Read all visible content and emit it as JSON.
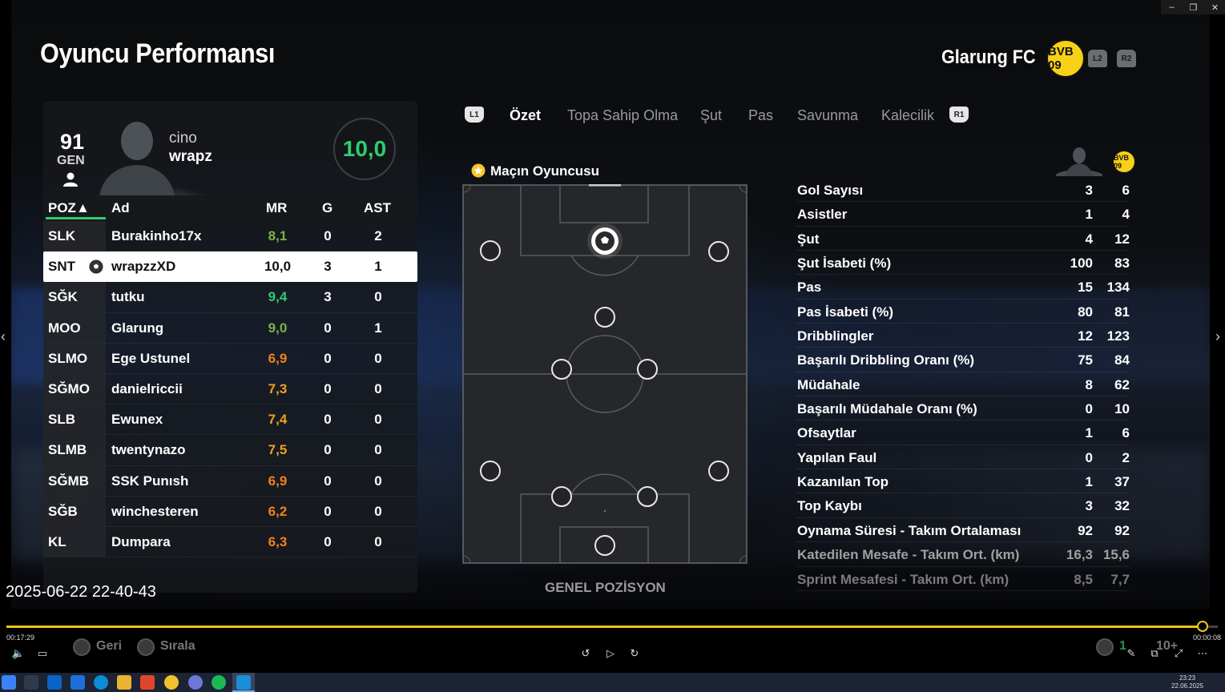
{
  "window": {
    "minimize": "–",
    "restore": "❐",
    "close": "✕"
  },
  "header": {
    "title": "Oyuncu Performansı",
    "club_name": "Glarung FC",
    "club_badge_text": "BVB 09",
    "l2": "L2",
    "r2": "R2"
  },
  "player": {
    "gen_value": "91",
    "gen_label": "GEN",
    "first_name": "cino",
    "last_name": "wrapz",
    "match_rating": "10,0"
  },
  "table": {
    "headers": {
      "pos": "POZ▲",
      "name": "Ad",
      "mr": "MR",
      "g": "G",
      "ast": "AST"
    },
    "rows": [
      {
        "pos": "SLK",
        "name": "Burakinho17x",
        "mr": "8,1",
        "g": "0",
        "ast": "2",
        "color": "#7cb342"
      },
      {
        "pos": "SNT",
        "name": "wrapzzXD",
        "mr": "10,0",
        "g": "3",
        "ast": "1",
        "color": "#111111"
      },
      {
        "pos": "SĞK",
        "name": "tutku",
        "mr": "9,4",
        "g": "3",
        "ast": "0",
        "color": "#2ecc71"
      },
      {
        "pos": "MOO",
        "name": "Glarung",
        "mr": "9,0",
        "g": "0",
        "ast": "1",
        "color": "#7cb342"
      },
      {
        "pos": "SLMO",
        "name": "Ege Ustunel",
        "mr": "6,9",
        "g": "0",
        "ast": "0",
        "color": "#f0821e"
      },
      {
        "pos": "SĞMO",
        "name": "danielriccii",
        "mr": "7,3",
        "g": "0",
        "ast": "0",
        "color": "#f0a01e"
      },
      {
        "pos": "SLB",
        "name": "Ewunex",
        "mr": "7,4",
        "g": "0",
        "ast": "0",
        "color": "#f0a01e"
      },
      {
        "pos": "SLMB",
        "name": "twentynazo",
        "mr": "7,5",
        "g": "0",
        "ast": "0",
        "color": "#f0a01e"
      },
      {
        "pos": "SĞMB",
        "name": "SSK Punısh",
        "mr": "6,9",
        "g": "0",
        "ast": "0",
        "color": "#f0821e"
      },
      {
        "pos": "SĞB",
        "name": "winchesteren",
        "mr": "6,2",
        "g": "0",
        "ast": "0",
        "color": "#f0821e"
      },
      {
        "pos": "KL",
        "name": "Dumpara",
        "mr": "6,3",
        "g": "0",
        "ast": "0",
        "color": "#f0821e"
      }
    ]
  },
  "tabs": {
    "l1": "L1",
    "r1": "R1",
    "items": [
      "Özet",
      "Topa Sahip Olma",
      "Şut",
      "Pas",
      "Savunma",
      "Kalecilik"
    ]
  },
  "pitch": {
    "title": "Maçın Oyuncusu",
    "caption": "GENEL POZİSYON"
  },
  "stats": [
    {
      "label": "Gol Sayısı",
      "player": "3",
      "team": "6"
    },
    {
      "label": "Asistler",
      "player": "1",
      "team": "4"
    },
    {
      "label": "Şut",
      "player": "4",
      "team": "12"
    },
    {
      "label": "Şut İsabeti (%)",
      "player": "100",
      "team": "83"
    },
    {
      "label": "Pas",
      "player": "15",
      "team": "134"
    },
    {
      "label": "Pas İsabeti (%)",
      "player": "80",
      "team": "81"
    },
    {
      "label": "Dribblingler",
      "player": "12",
      "team": "123"
    },
    {
      "label": "Başarılı Dribbling Oranı (%)",
      "player": "75",
      "team": "84"
    },
    {
      "label": "Müdahale",
      "player": "8",
      "team": "62"
    },
    {
      "label": "Başarılı Müdahale Oranı (%)",
      "player": "0",
      "team": "10"
    },
    {
      "label": "Ofsaytlar",
      "player": "1",
      "team": "6"
    },
    {
      "label": "Yapılan Faul",
      "player": "0",
      "team": "2"
    },
    {
      "label": "Kazanılan Top",
      "player": "1",
      "team": "37"
    },
    {
      "label": "Top Kaybı",
      "player": "3",
      "team": "32"
    },
    {
      "label": "Oynama Süresi - Takım Ortalaması",
      "player": "92",
      "team": "92"
    },
    {
      "label": "Katedilen Mesafe - Takım Ort. (km)",
      "player": "16,3",
      "team": "15,6"
    },
    {
      "label": "Sprint Mesafesi - Takım Ort. (km)",
      "player": "8,5",
      "team": "7,7"
    }
  ],
  "overlay": {
    "timestamp": "2025-06-22 22-40-43"
  },
  "hints": {
    "back": "Geri",
    "sort": "Sırala",
    "count": "1",
    "more": "10+"
  },
  "media": {
    "elapsed": "00:17:29",
    "remaining": "00:00:08",
    "progress": 0.9875
  },
  "taskbar": {
    "time": "23:23",
    "date": "22.06.2025"
  }
}
